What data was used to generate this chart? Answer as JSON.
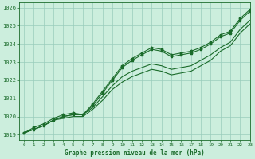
{
  "title": "Graphe pression niveau de la mer (hPa)",
  "background_color": "#cceedd",
  "grid_color": "#99ccbb",
  "line_color": "#1a6b2a",
  "marker_color": "#1a6b2a",
  "xlim": [
    -0.5,
    23
  ],
  "ylim": [
    1018.7,
    1026.3
  ],
  "yticks": [
    1019,
    1020,
    1021,
    1022,
    1023,
    1024,
    1025,
    1026
  ],
  "xticks": [
    0,
    1,
    2,
    3,
    4,
    5,
    6,
    7,
    8,
    9,
    10,
    11,
    12,
    13,
    14,
    15,
    16,
    17,
    18,
    19,
    20,
    21,
    22,
    23
  ],
  "series": [
    {
      "x": [
        0,
        1,
        2,
        3,
        4,
        5,
        6,
        7,
        8,
        9,
        10,
        11,
        12,
        13,
        14,
        15,
        16,
        17,
        18,
        19,
        20,
        21,
        22,
        23
      ],
      "y": [
        1019.1,
        1019.4,
        1019.6,
        1019.9,
        1020.1,
        1020.2,
        1020.1,
        1020.6,
        1021.3,
        1022.0,
        1022.7,
        1023.1,
        1023.4,
        1023.7,
        1023.6,
        1023.3,
        1023.4,
        1023.5,
        1023.7,
        1024.0,
        1024.4,
        1024.6,
        1025.3,
        1025.8
      ],
      "has_markers": true
    },
    {
      "x": [
        0,
        1,
        2,
        3,
        4,
        5,
        6,
        7,
        8,
        9,
        10,
        11,
        12,
        13,
        14,
        15,
        16,
        17,
        18,
        19,
        20,
        21,
        22,
        23
      ],
      "y": [
        1019.1,
        1019.3,
        1019.5,
        1019.8,
        1020.0,
        1020.1,
        1020.1,
        1020.5,
        1021.1,
        1021.7,
        1022.2,
        1022.5,
        1022.7,
        1022.9,
        1022.8,
        1022.6,
        1022.7,
        1022.8,
        1023.1,
        1023.4,
        1023.8,
        1024.1,
        1024.8,
        1025.3
      ],
      "has_markers": false
    },
    {
      "x": [
        0,
        1,
        2,
        3,
        4,
        5,
        6,
        7,
        8,
        9,
        10,
        11,
        12,
        13,
        14,
        15,
        16,
        17,
        18,
        19,
        20,
        21,
        22,
        23
      ],
      "y": [
        1019.1,
        1019.3,
        1019.5,
        1019.8,
        1019.9,
        1020.0,
        1020.0,
        1020.4,
        1020.9,
        1021.5,
        1021.9,
        1022.2,
        1022.4,
        1022.6,
        1022.5,
        1022.3,
        1022.4,
        1022.5,
        1022.8,
        1023.1,
        1023.6,
        1023.9,
        1024.6,
        1025.1
      ],
      "has_markers": false
    },
    {
      "x": [
        0,
        1,
        2,
        3,
        4,
        5,
        6,
        7,
        8,
        9,
        10,
        11,
        12,
        13,
        14,
        15,
        16,
        17,
        18,
        19,
        20,
        21,
        22,
        23
      ],
      "y": [
        1019.1,
        1019.3,
        1019.5,
        1019.8,
        1020.0,
        1020.1,
        1020.1,
        1020.7,
        1021.4,
        1022.1,
        1022.8,
        1023.2,
        1023.5,
        1023.8,
        1023.7,
        1023.4,
        1023.5,
        1023.6,
        1023.8,
        1024.1,
        1024.5,
        1024.7,
        1025.4,
        1025.9
      ],
      "has_markers": true
    }
  ]
}
